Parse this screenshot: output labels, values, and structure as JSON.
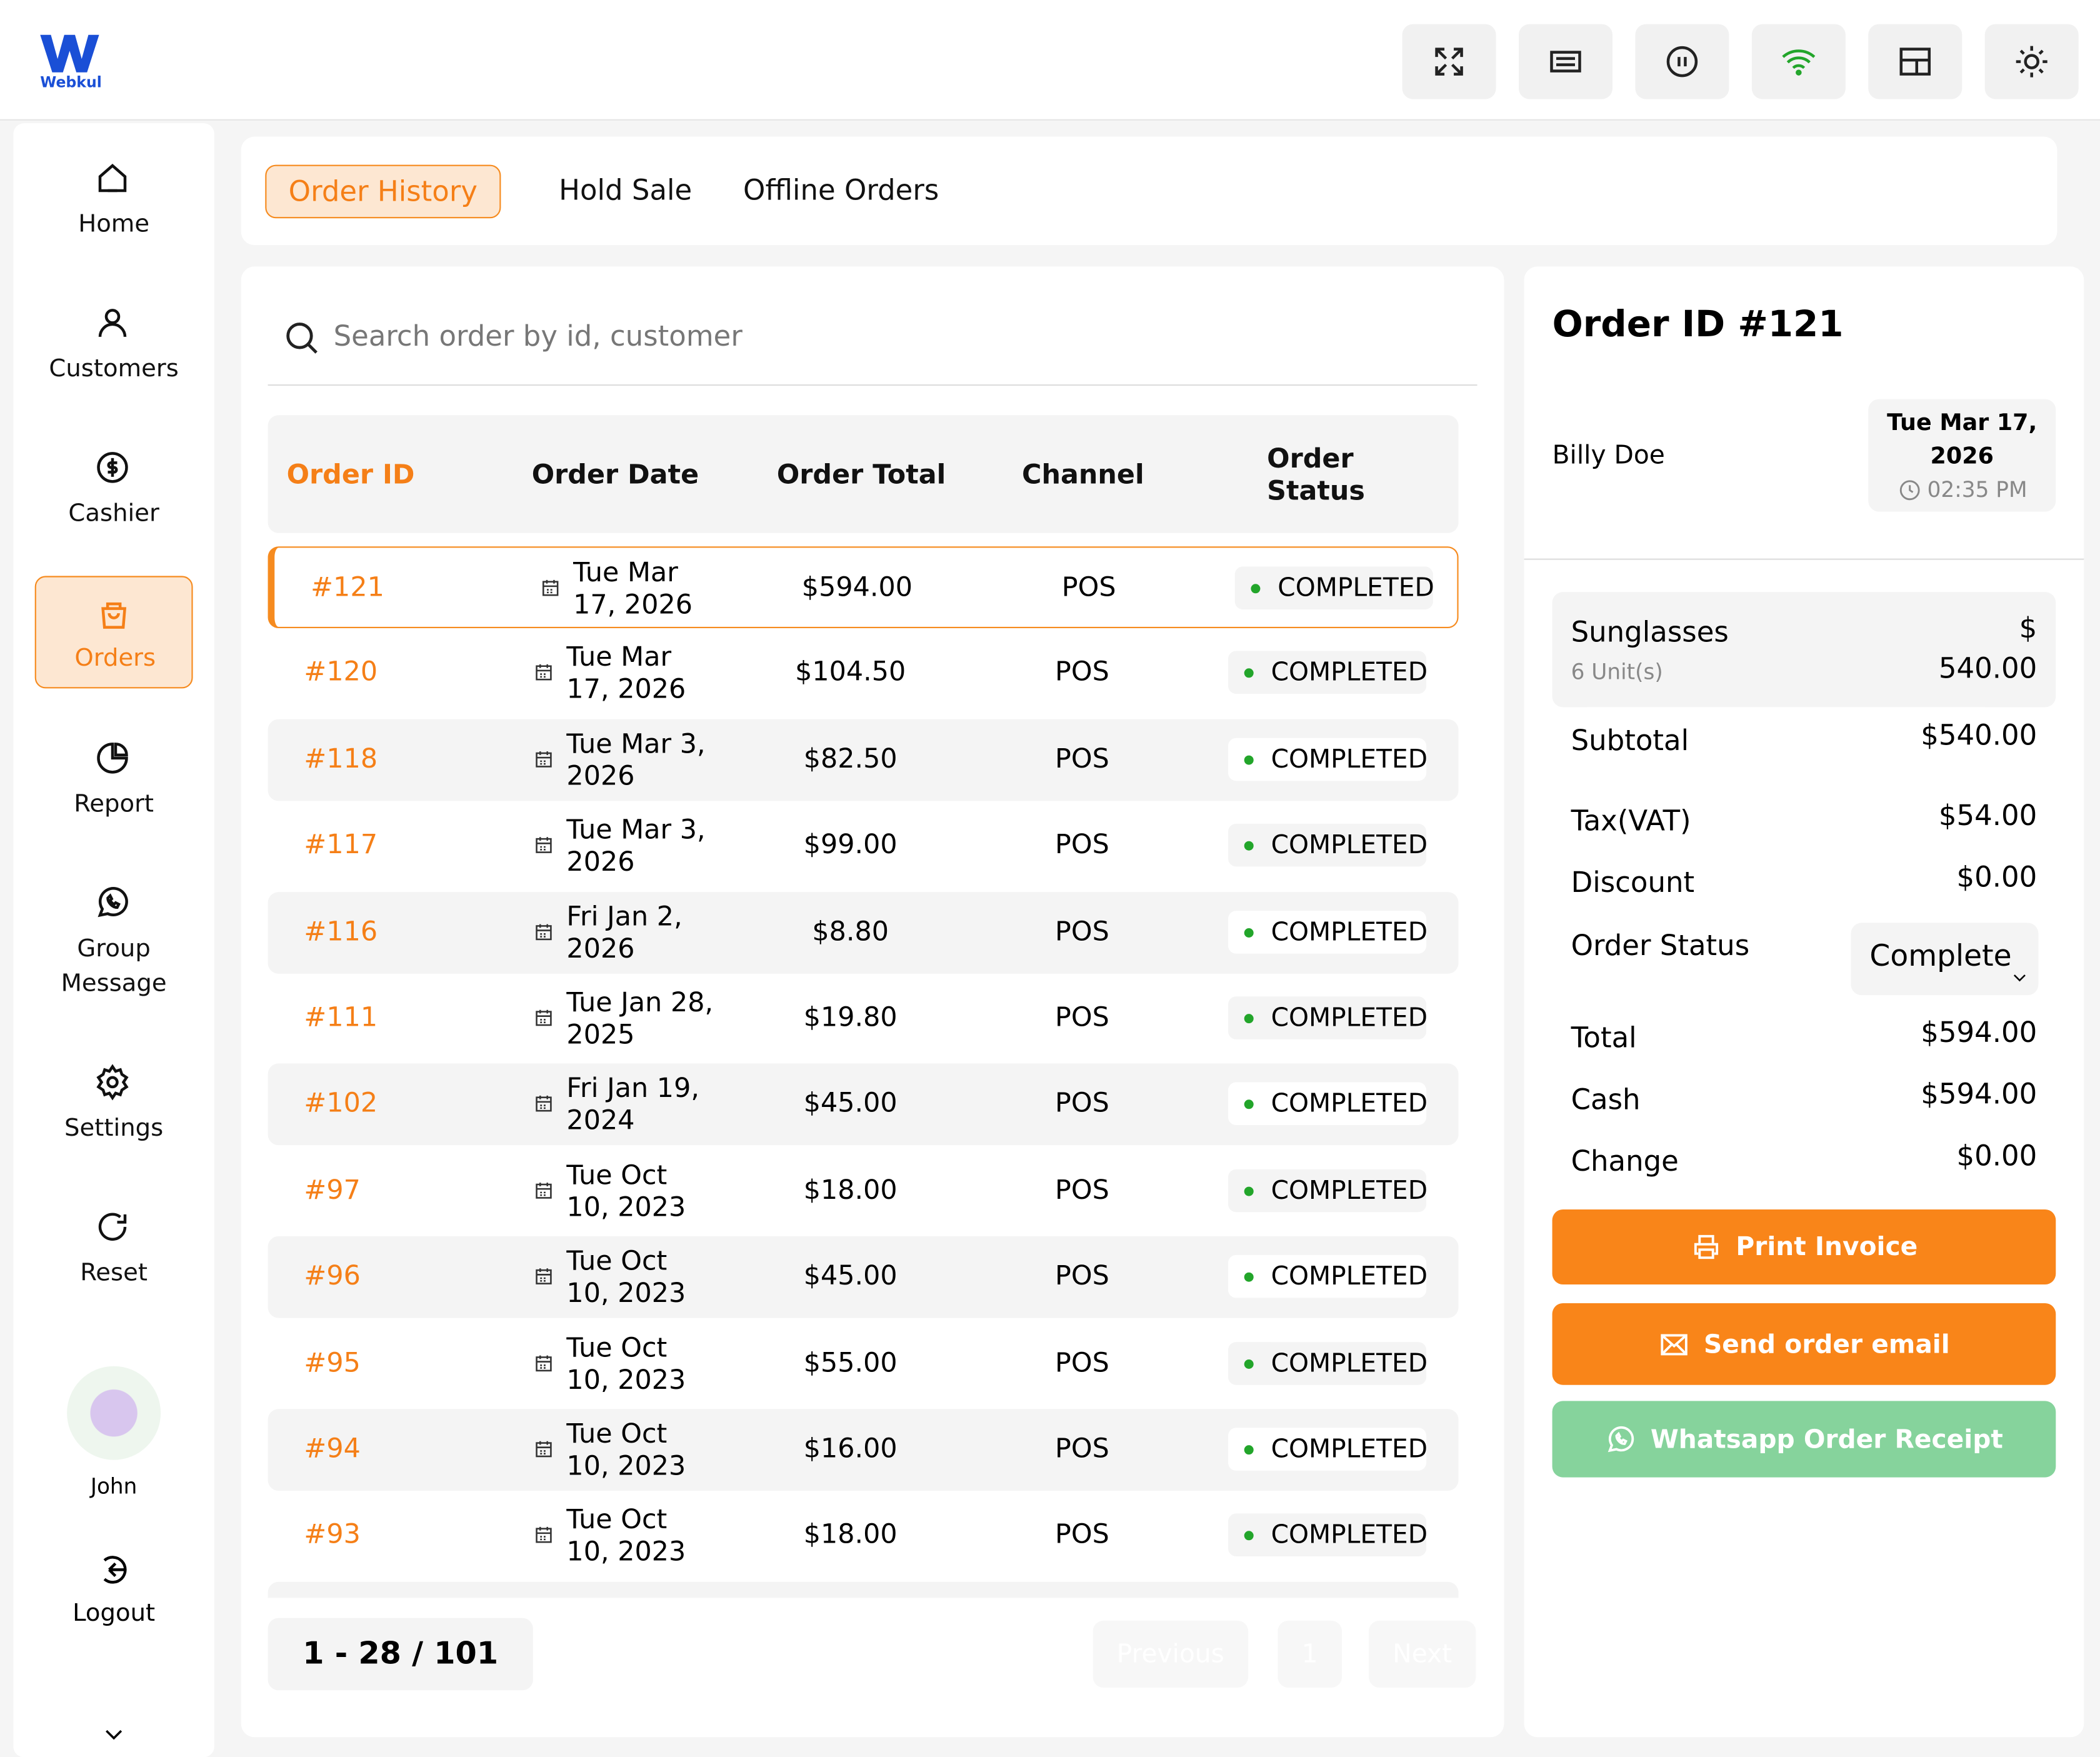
{
  "brand": "Webkul",
  "nav": [
    "Home",
    "Customers",
    "Cashier",
    "Orders",
    "Report",
    "Group Message",
    "Settings",
    "Reset"
  ],
  "user": "John",
  "logout": "Logout",
  "tabs": [
    "Order History",
    "Hold Sale",
    "Offline Orders"
  ],
  "search_placeholder": "Search order by id, customer",
  "table": {
    "headers": [
      "Order ID",
      "Order Date",
      "Order Total",
      "Channel",
      "Order Status"
    ],
    "rows": [
      [
        "#121",
        "Tue Mar 17, 2026",
        "$594.00",
        "POS",
        "COMPLETED"
      ],
      [
        "#120",
        "Tue Mar 17, 2026",
        "$104.50",
        "POS",
        "COMPLETED"
      ],
      [
        "#118",
        "Tue Mar 3, 2026",
        "$82.50",
        "POS",
        "COMPLETED"
      ],
      [
        "#117",
        "Tue Mar 3, 2026",
        "$99.00",
        "POS",
        "COMPLETED"
      ],
      [
        "#116",
        "Fri Jan 2, 2026",
        "$8.80",
        "POS",
        "COMPLETED"
      ],
      [
        "#111",
        "Tue Jan 28, 2025",
        "$19.80",
        "POS",
        "COMPLETED"
      ],
      [
        "#102",
        "Fri Jan 19, 2024",
        "$45.00",
        "POS",
        "COMPLETED"
      ],
      [
        "#97",
        "Tue Oct 10, 2023",
        "$18.00",
        "POS",
        "COMPLETED"
      ],
      [
        "#96",
        "Tue Oct 10, 2023",
        "$45.00",
        "POS",
        "COMPLETED"
      ],
      [
        "#95",
        "Tue Oct 10, 2023",
        "$55.00",
        "POS",
        "COMPLETED"
      ],
      [
        "#94",
        "Tue Oct 10, 2023",
        "$16.00",
        "POS",
        "COMPLETED"
      ],
      [
        "#93",
        "Tue Oct 10, 2023",
        "$18.00",
        "POS",
        "COMPLETED"
      ]
    ]
  },
  "pagination": {
    "range": "1 - 28 / 101",
    "previous": "Previous",
    "page": "1",
    "next": "Next"
  },
  "detail": {
    "title": "Order ID #121",
    "customer": "Billy Doe",
    "date": "Tue Mar 17, 2026",
    "time": "02:35 PM",
    "item": {
      "name": "Sunglasses",
      "qty": "6 Unit(s)",
      "price": "$ 540.00"
    },
    "summary": [
      [
        "Subtotal",
        "$540.00"
      ],
      [
        "Tax(VAT)",
        "$54.00"
      ],
      [
        "Discount",
        "$0.00"
      ]
    ],
    "status_label": "Order Status",
    "status_value": "Complete",
    "totals": [
      [
        "Total",
        "$594.00"
      ],
      [
        "Cash",
        "$594.00"
      ],
      [
        "Change",
        "$0.00"
      ]
    ],
    "buttons": [
      "Print Invoice",
      "Send order email",
      "Whatsapp Order Receipt"
    ]
  }
}
